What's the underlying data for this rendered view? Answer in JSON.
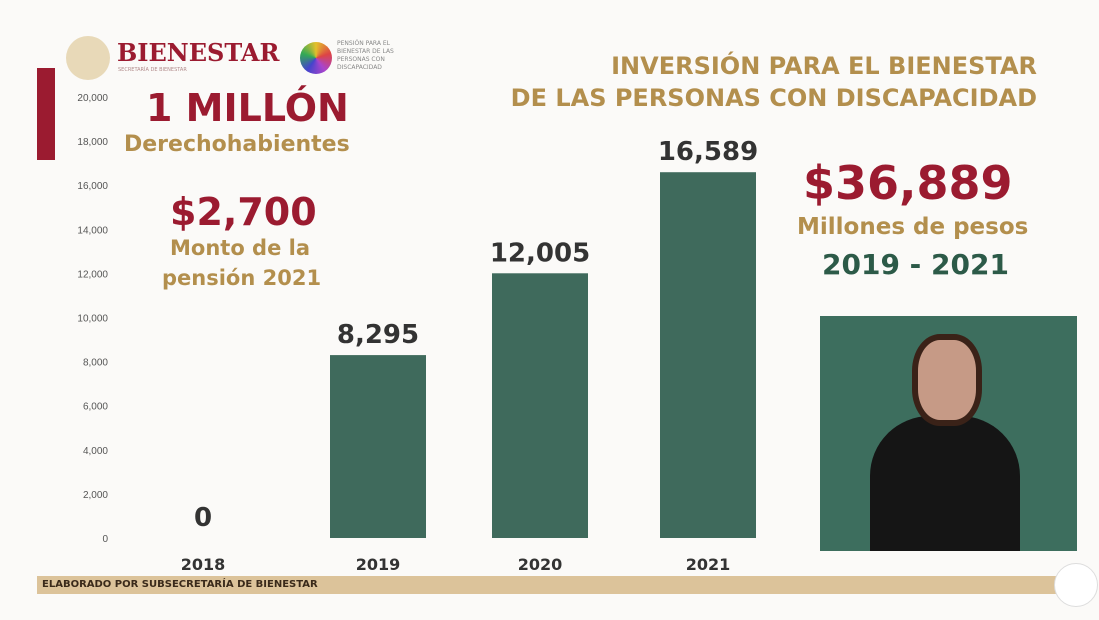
{
  "header": {
    "logo_text": "BIENESTAR",
    "logo_sub": "SECRETARÍA DE BIENESTAR",
    "program_logo": "PENSIÓN PARA EL BIENESTAR DE LAS PERSONAS CON DISCAPACIDAD"
  },
  "title_line1": "INVERSIÓN PARA EL BIENESTAR",
  "title_line2": "DE LAS PERSONAS CON DISCAPACIDAD",
  "left": {
    "big": "1 MILLÓN",
    "big_sub": "Derechohabientes",
    "amount": "$2,700",
    "amount_sub1": "Monto de la",
    "amount_sub2": "pensión 2021"
  },
  "right": {
    "total": "$36,889",
    "total_sub": "Millones de pesos",
    "period": "2019 - 2021"
  },
  "footer": "ELABORADO POR SUBSECRETARÍA DE BIENESTAR",
  "colors": {
    "bar": "#3f6a5c",
    "maroon": "#9b1b30",
    "gold": "#b38f4d",
    "footer": "#dcc39a"
  },
  "chart_data": {
    "type": "bar",
    "categories": [
      "2018",
      "2019",
      "2020",
      "2021"
    ],
    "values": [
      0,
      8295,
      12005,
      16589
    ],
    "labels": [
      "0",
      "8,295",
      "12,005",
      "16,589"
    ],
    "yticks": [
      "0",
      "2,000",
      "4,000",
      "6,000",
      "8,000",
      "10,000",
      "12,000",
      "14,000",
      "16,000",
      "18,000",
      "20,000"
    ],
    "ylim": [
      0,
      20000
    ],
    "title": "INVERSIÓN PARA EL BIENESTAR DE LAS PERSONAS CON DISCAPACIDAD",
    "xlabel": "",
    "ylabel": ""
  }
}
